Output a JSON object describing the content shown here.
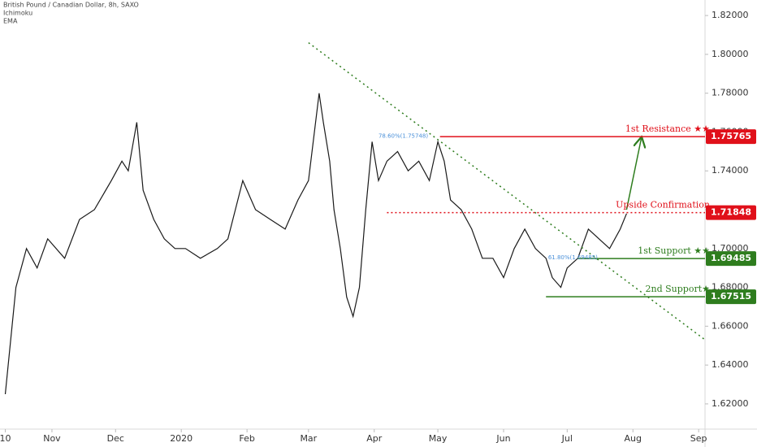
{
  "chart_data": {
    "type": "line",
    "header": [
      "British Pound / Canadian Dollar, 8h, SAXO",
      "Ichimoku",
      "EMA"
    ],
    "x": [
      0,
      5,
      10,
      15,
      20,
      28,
      35,
      42,
      50,
      55,
      58,
      62,
      65,
      70,
      75,
      80,
      85,
      92,
      100,
      105,
      112,
      118,
      125,
      132,
      138,
      143,
      148,
      150,
      153,
      155,
      158,
      161,
      164,
      167,
      170,
      173,
      176,
      180,
      185,
      190,
      195,
      200,
      204,
      207,
      210,
      215,
      220,
      225,
      230,
      235,
      240,
      245,
      250,
      255,
      258,
      262,
      265,
      270,
      275,
      280,
      285,
      290,
      293
    ],
    "series": [
      {
        "color": "#1a1a1a",
        "values": [
          1.625,
          1.68,
          1.7,
          1.69,
          1.705,
          1.695,
          1.715,
          1.72,
          1.735,
          1.745,
          1.74,
          1.765,
          1.73,
          1.715,
          1.705,
          1.7,
          1.7,
          1.695,
          1.7,
          1.705,
          1.735,
          1.72,
          1.715,
          1.71,
          1.725,
          1.735,
          1.78,
          1.765,
          1.745,
          1.72,
          1.7,
          1.675,
          1.665,
          1.68,
          1.72,
          1.755,
          1.735,
          1.745,
          1.75,
          1.74,
          1.745,
          1.735,
          1.755,
          1.745,
          1.725,
          1.72,
          1.71,
          1.695,
          1.695,
          1.685,
          1.7,
          1.71,
          1.7,
          1.695,
          1.685,
          1.68,
          1.69,
          1.695,
          1.71,
          1.705,
          1.7,
          1.71,
          1.718
        ]
      }
    ],
    "xlim": [
      -2.5,
      330
    ],
    "ylim": [
      1.607,
      1.828
    ],
    "xticks": [
      {
        "value": 0,
        "label": "10"
      },
      {
        "value": 22,
        "label": "Nov"
      },
      {
        "value": 52,
        "label": "Dec"
      },
      {
        "value": 83,
        "label": "2020"
      },
      {
        "value": 114,
        "label": "Feb"
      },
      {
        "value": 143,
        "label": "Mar"
      },
      {
        "value": 174,
        "label": "Apr"
      },
      {
        "value": 204,
        "label": "May"
      },
      {
        "value": 235,
        "label": "Jun"
      },
      {
        "value": 265,
        "label": "Jul"
      },
      {
        "value": 296,
        "label": "Aug"
      },
      {
        "value": 327,
        "label": "Sep"
      }
    ],
    "yticks": [
      {
        "value": 1.62,
        "label": "1.62000"
      },
      {
        "value": 1.64,
        "label": "1.64000"
      },
      {
        "value": 1.66,
        "label": "1.66000"
      },
      {
        "value": 1.68,
        "label": "1.68000"
      },
      {
        "value": 1.7,
        "label": "1.70000"
      },
      {
        "value": 1.72,
        "label": "1.72000"
      },
      {
        "value": 1.74,
        "label": "1.74000"
      },
      {
        "value": 1.76,
        "label": "1.76000"
      },
      {
        "value": 1.78,
        "label": "1.78000"
      },
      {
        "value": 1.8,
        "label": "1.80000"
      },
      {
        "value": 1.82,
        "label": "1.82000"
      }
    ],
    "levels": [
      {
        "name": "1st Resistance ★★",
        "value": 1.75765,
        "start": 205,
        "color": "#e0101a",
        "style": "solid"
      },
      {
        "name": "Upside Confirmation",
        "value": 1.71848,
        "start": 180,
        "color": "#e0101a",
        "style": "dotted"
      },
      {
        "name": "1st Support ★★",
        "value": 1.69485,
        "start": 270,
        "color": "#2e7d1e",
        "style": "solid"
      },
      {
        "name": "2nd Support★",
        "value": 1.67515,
        "start": 255,
        "color": "#2e7d1e",
        "style": "solid"
      }
    ],
    "fib_labels": [
      {
        "text": "78.60%(1.75748)",
        "x": 176,
        "y": 1.75748
      },
      {
        "text": "61.80%(1.69485)",
        "x": 256,
        "y": 1.69485
      }
    ],
    "trendline": {
      "x": [
        143,
        330
      ],
      "y": [
        1.806,
        1.653
      ],
      "color": "#2e7d1e"
    },
    "arrow": {
      "x": [
        293,
        300
      ],
      "y": [
        1.72,
        1.757
      ],
      "color": "#2e7d1e"
    }
  }
}
